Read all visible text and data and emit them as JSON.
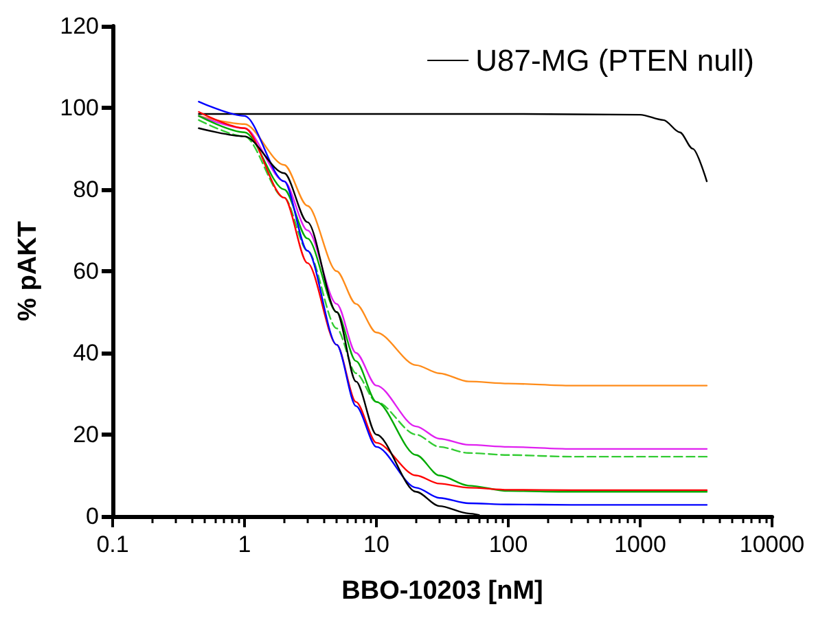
{
  "chart_data": {
    "type": "line",
    "xlabel": "BBO-10203 [nM]",
    "ylabel": "% pAKT",
    "log": "x",
    "xlim": [
      0.1,
      10000
    ],
    "xticks": [
      0.1,
      1,
      10,
      100,
      1000,
      10000
    ],
    "ylim": [
      0,
      120
    ],
    "yticks": [
      0,
      20,
      40,
      60,
      80,
      100,
      120
    ],
    "grid": false,
    "legend": "top right",
    "marker": "none",
    "x": [
      0.45,
      1,
      2,
      3,
      5,
      7,
      10,
      20,
      30,
      50,
      100,
      300,
      1000,
      3200
    ],
    "series": [
      {
        "name": "U87-MG (PTEN null)",
        "color": "#000000",
        "x": [
          0.45,
          10,
          100,
          1000,
          1500,
          2000,
          2500,
          3200
        ],
        "values": [
          98.5,
          98.5,
          98.5,
          98.3,
          97,
          94,
          90,
          82
        ]
      },
      {
        "color": "#ff8c1a",
        "values": [
          98,
          96,
          86,
          76,
          60,
          52,
          45,
          37,
          35,
          33,
          32.5,
          32,
          32,
          32
        ]
      },
      {
        "color": "#e020f0",
        "values": [
          98,
          95,
          82,
          70,
          52,
          40,
          32,
          22,
          19,
          17.5,
          17,
          16.5,
          16.5,
          16.5
        ]
      },
      {
        "color": "#33cc33",
        "line_style": "dashed",
        "values": [
          97,
          93,
          78,
          65,
          46,
          35,
          28,
          20,
          17,
          15.5,
          15,
          14.6,
          14.6,
          14.6
        ]
      },
      {
        "color": "#00aa00",
        "values": [
          98,
          94,
          80,
          68,
          50,
          38,
          28,
          15,
          10,
          7.5,
          6.2,
          6,
          6,
          6
        ]
      },
      {
        "color": "#ff0000",
        "values": [
          99,
          95,
          78,
          62,
          42,
          28,
          18,
          10,
          8,
          7,
          6.5,
          6.4,
          6.4,
          6.4
        ]
      },
      {
        "color": "#0000ff",
        "values": [
          101.5,
          98,
          82,
          65,
          42,
          27,
          17,
          7,
          4.5,
          3.2,
          2.9,
          2.8,
          2.8,
          2.8
        ]
      },
      {
        "color": "#000000",
        "x": [
          0.45,
          1,
          2,
          3,
          5,
          7,
          10,
          20,
          30,
          50,
          60
        ],
        "values": [
          95,
          93,
          84,
          72,
          50,
          33,
          20,
          6,
          2.5,
          0.7,
          0.3
        ]
      }
    ]
  }
}
